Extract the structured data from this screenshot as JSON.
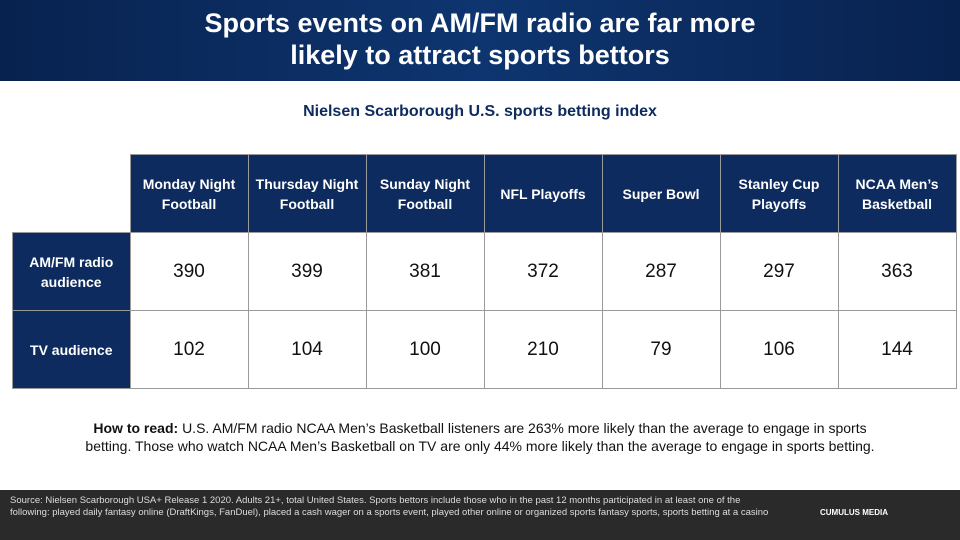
{
  "header": {
    "title_lines": [
      "Sports events on AM/FM radio are far more",
      "likely to attract sports bettors"
    ]
  },
  "subtitle": "Nielsen Scarborough U.S. sports betting index",
  "table": {
    "columns": [
      "Monday Night Football",
      "Thursday Night Football",
      "Sunday Night Football",
      "NFL Playoffs",
      "Super Bowl",
      "Stanley Cup Playoffs",
      "NCAA Men’s Basketball"
    ],
    "rows": [
      {
        "label": "AM/FM radio audience",
        "values": [
          "390",
          "399",
          "381",
          "372",
          "287",
          "297",
          "363"
        ]
      },
      {
        "label": "TV audience",
        "values": [
          "102",
          "104",
          "100",
          "210",
          "79",
          "106",
          "144"
        ]
      }
    ]
  },
  "how_to_read": {
    "lead": "How to read:",
    "text": "U.S. AM/FM radio NCAA Men’s Basketball listeners are 263% more likely than the average to engage in sports betting. Those who watch NCAA Men’s Basketball on TV are only 44% more likely than the average to engage in sports betting."
  },
  "footer": {
    "source": "Source: Nielsen Scarborough USA+ Release 1 2020. Adults 21+, total United States. Sports bettors include those who in the past 12 months participated in at least one of the following: played daily fantasy online (DraftKings, FanDuel), placed a cash wager on a sports event, played other online or organized sports fantasy sports, sports betting at a casino",
    "logo": "CUMULUS MEDIA"
  }
}
